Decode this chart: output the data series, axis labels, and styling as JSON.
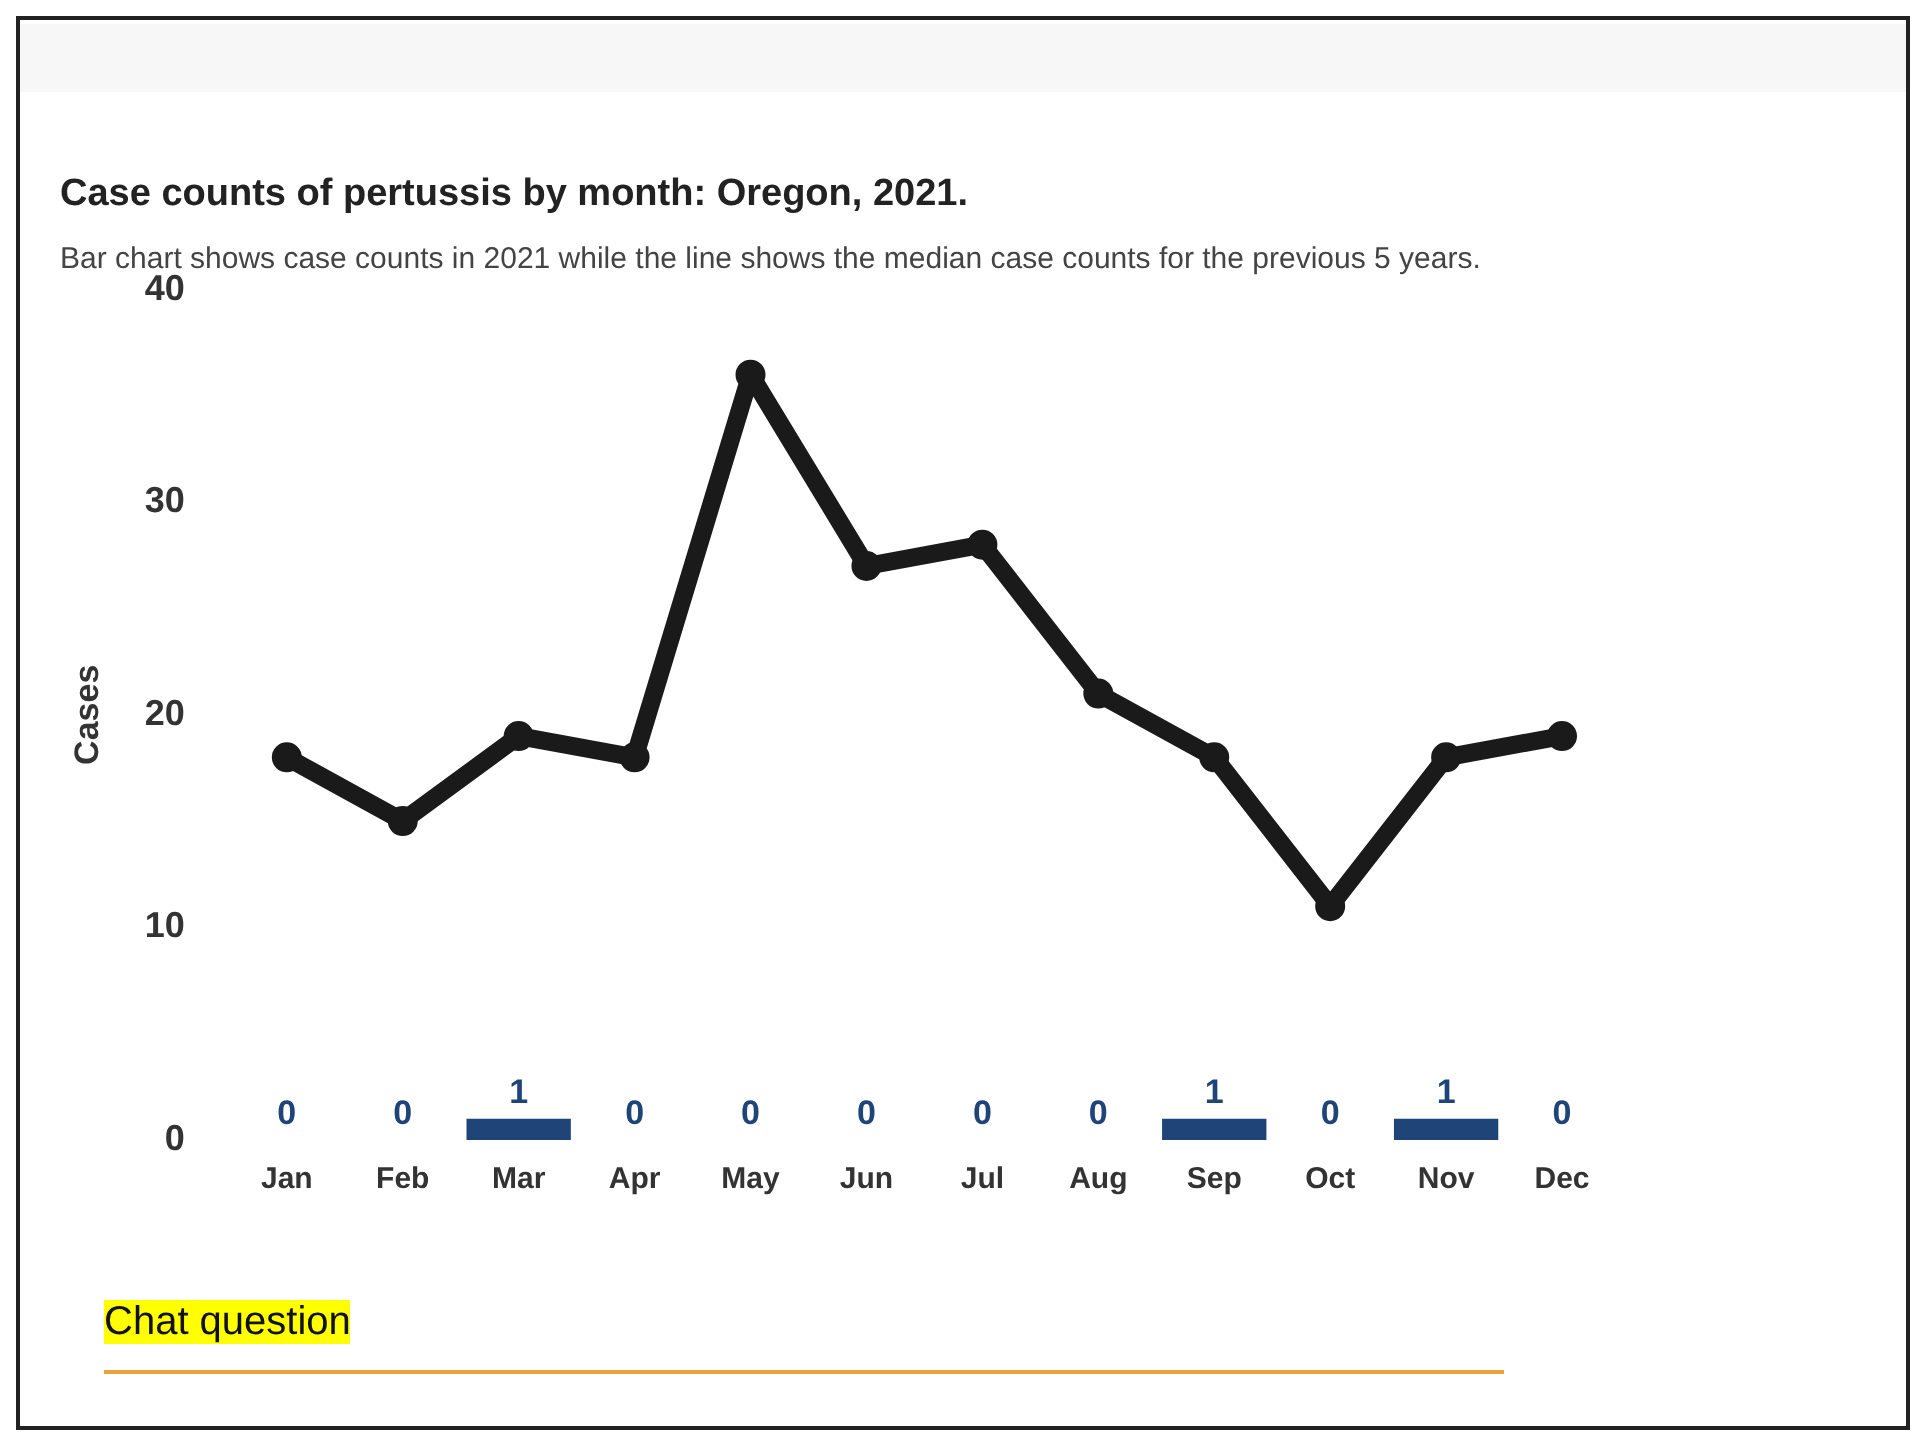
{
  "chart_data": {
    "type": "bar",
    "title": "Case counts of pertussis by month: Oregon, 2021.",
    "subtitle": "Bar chart shows case counts in 2021 while the line shows the median case counts for the previous 5 years.",
    "ylabel": "Cases",
    "annotations": [
      "Chat question"
    ],
    "categories": [
      "Jan",
      "Feb",
      "Mar",
      "Apr",
      "May",
      "Jun",
      "Jul",
      "Aug",
      "Sep",
      "Oct",
      "Nov",
      "Dec"
    ],
    "series": [
      {
        "color": "#1f4478",
        "values": [
          0,
          0,
          1,
          0,
          0,
          0,
          0,
          0,
          1,
          0,
          1,
          0
        ],
        "value_labels": [
          "0",
          "0",
          "1",
          "0",
          "0",
          "0",
          "0",
          "0",
          "1",
          "0",
          "1",
          "0"
        ]
      },
      {
        "type": "line",
        "color": "#1a1a1a",
        "values": [
          18,
          15,
          19,
          18,
          36,
          27,
          28,
          21,
          18,
          11,
          18,
          19
        ]
      }
    ],
    "ylim": [
      0,
      40
    ],
    "yticks": [
      0,
      10,
      20,
      30,
      40
    ],
    "grid": false,
    "legend": false,
    "marker": "circle",
    "line_style": "solid"
  }
}
